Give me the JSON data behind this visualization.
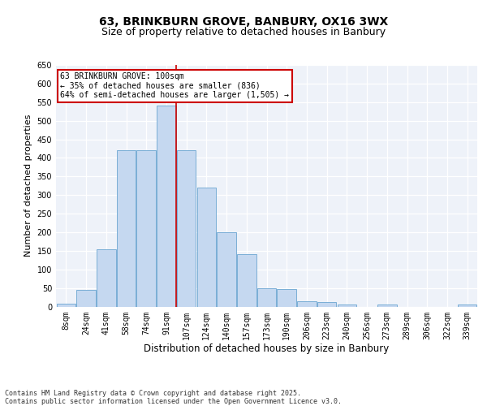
{
  "title": "63, BRINKBURN GROVE, BANBURY, OX16 3WX",
  "subtitle": "Size of property relative to detached houses in Banbury",
  "xlabel": "Distribution of detached houses by size in Banbury",
  "ylabel": "Number of detached properties",
  "categories": [
    "8sqm",
    "24sqm",
    "41sqm",
    "58sqm",
    "74sqm",
    "91sqm",
    "107sqm",
    "124sqm",
    "140sqm",
    "157sqm",
    "173sqm",
    "190sqm",
    "206sqm",
    "223sqm",
    "240sqm",
    "256sqm",
    "273sqm",
    "289sqm",
    "306sqm",
    "322sqm",
    "339sqm"
  ],
  "values": [
    8,
    45,
    155,
    420,
    420,
    540,
    420,
    320,
    200,
    140,
    50,
    48,
    15,
    12,
    5,
    0,
    5,
    0,
    0,
    0,
    5
  ],
  "bar_color": "#c5d8f0",
  "bar_edge_color": "#7aaed6",
  "vline_x_index": 6,
  "vline_color": "#cc0000",
  "annotation_text": "63 BRINKBURN GROVE: 100sqm\n← 35% of detached houses are smaller (836)\n64% of semi-detached houses are larger (1,505) →",
  "annotation_box_color": "#cc0000",
  "annotation_bg_color": "#ffffff",
  "ylim": [
    0,
    650
  ],
  "yticks": [
    0,
    50,
    100,
    150,
    200,
    250,
    300,
    350,
    400,
    450,
    500,
    550,
    600,
    650
  ],
  "background_color": "#eef2f9",
  "footer_text": "Contains HM Land Registry data © Crown copyright and database right 2025.\nContains public sector information licensed under the Open Government Licence v3.0.",
  "title_fontsize": 10,
  "subtitle_fontsize": 9,
  "xlabel_fontsize": 8.5,
  "ylabel_fontsize": 8,
  "tick_fontsize": 7,
  "footer_fontsize": 6
}
